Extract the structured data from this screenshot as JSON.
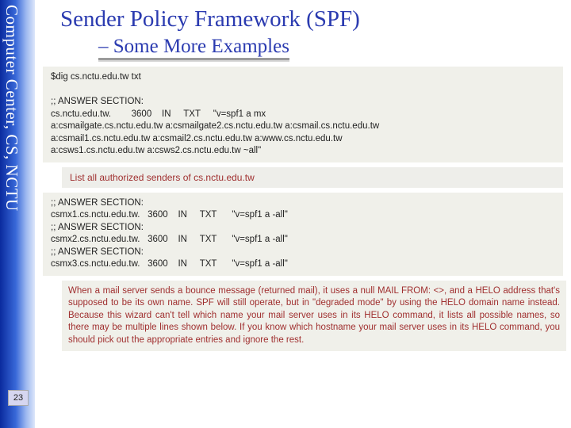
{
  "sidebar": {
    "label": "Computer Center, CS, NCTU",
    "page_number": "23"
  },
  "header": {
    "title": "Sender Policy Framework (SPF)",
    "subtitle": "– Some More Examples"
  },
  "block1": {
    "cmd": "$dig cs.nctu.edu.tw txt",
    "body": ";; ANSWER SECTION:\ncs.nctu.edu.tw.        3600    IN     TXT     \"v=spf1 a mx\na:csmailgate.cs.nctu.edu.tw a:csmailgate2.cs.nctu.edu.tw a:csmail.cs.nctu.edu.tw\na:csmail1.cs.nctu.edu.tw a:csmail2.cs.nctu.edu.tw a:www.cs.nctu.edu.tw\na:csws1.cs.nctu.edu.tw a:csws2.cs.nctu.edu.tw ~all\""
  },
  "callout": {
    "text": "List all authorized senders of cs.nctu.edu.tw"
  },
  "block2": {
    "body": ";; ANSWER SECTION:\ncsmx1.cs.nctu.edu.tw.   3600    IN     TXT      \"v=spf1 a -all\"\n;; ANSWER SECTION:\ncsmx2.cs.nctu.edu.tw.   3600    IN     TXT      \"v=spf1 a -all\"\n;; ANSWER SECTION:\ncsmx3.cs.nctu.edu.tw.   3600    IN     TXT      \"v=spf1 a -all\""
  },
  "explain": {
    "text": "When a mail server sends a bounce message (returned mail), it uses a null MAIL FROM: <>, and a HELO address that's supposed to be its own name. SPF will still operate, but in \"degraded mode\" by using the HELO domain name instead. Because this wizard can't tell which name your mail server uses in its HELO command, it lists all possible names, so there may be multiple lines shown below. If you know which hostname your mail server uses in its HELO command, you should pick out the appropriate entries and ignore the rest."
  },
  "colors": {
    "title_color": "#2b3bb0",
    "callout_text": "#a03030",
    "code_bg": "#f0f0ea"
  }
}
